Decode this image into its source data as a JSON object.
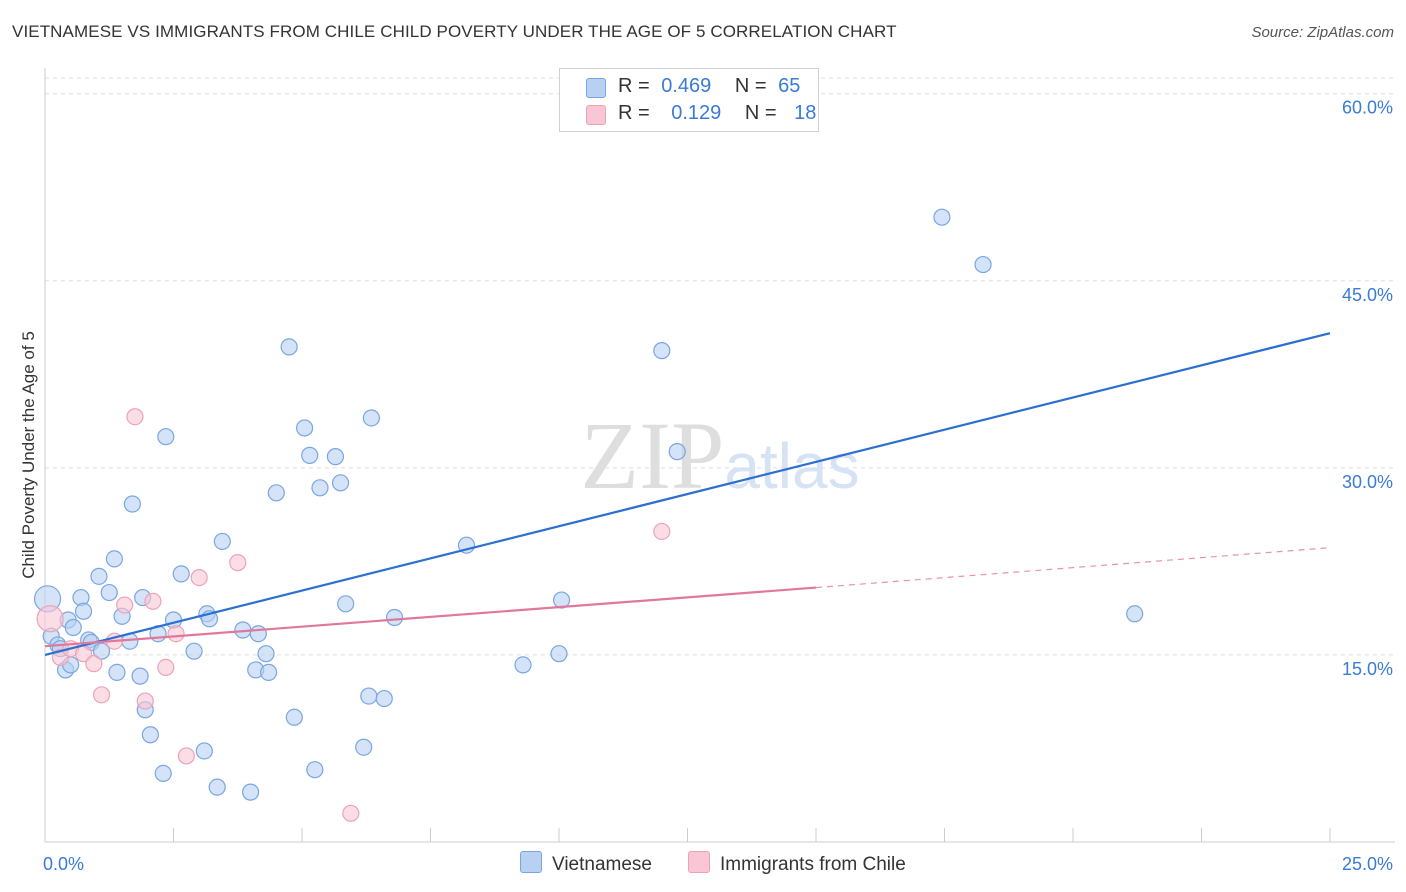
{
  "header": {
    "title": "VIETNAMESE VS IMMIGRANTS FROM CHILE CHILD POVERTY UNDER THE AGE OF 5 CORRELATION CHART",
    "source": "Source: ZipAtlas.com"
  },
  "legend": {
    "rows": [
      {
        "r_label": "R =",
        "r_value": "0.469",
        "n_label": "N =",
        "n_value": "65"
      },
      {
        "r_label": "R =",
        "r_value": "0.129",
        "n_label": "N =",
        "n_value": "18"
      }
    ]
  },
  "bottom_legend": {
    "series1": "Vietnamese",
    "series2": "Immigrants from Chile"
  },
  "colors": {
    "blue_fill": "#b8d0f2",
    "blue_stroke": "#7aa6e0",
    "blue_line": "#2a6fd1",
    "pink_fill": "#f8c6d4",
    "pink_stroke": "#eea2b8",
    "pink_line": "#e2779c",
    "axis_label": "#3a7bd5",
    "grid": "#dddddd"
  },
  "chart_data": {
    "type": "scatter",
    "title": "VIETNAMESE VS IMMIGRANTS FROM CHILE CHILD POVERTY UNDER THE AGE OF 5 CORRELATION CHART",
    "xlabel": "",
    "ylabel": "Child Poverty Under the Age of 5",
    "x_tick_labels": [
      "0.0%",
      "25.0%"
    ],
    "y_tick_labels": [
      "15.0%",
      "30.0%",
      "45.0%",
      "60.0%"
    ],
    "y_ticks": [
      15,
      30,
      45,
      60
    ],
    "xlim": [
      0,
      25
    ],
    "ylim": [
      0,
      61.5
    ],
    "grid": true,
    "legend_position": "top-center",
    "watermark": "ZIPatlas",
    "series": [
      {
        "name": "Vietnamese",
        "R": 0.469,
        "N": 65,
        "trend": {
          "x0": 0,
          "y0": 15.0,
          "x1": 25,
          "y1": 40.8
        },
        "points": [
          [
            0.05,
            19.5
          ],
          [
            0.12,
            16.5
          ],
          [
            0.25,
            15.8
          ],
          [
            0.3,
            15.5
          ],
          [
            0.4,
            13.8
          ],
          [
            0.45,
            17.8
          ],
          [
            0.55,
            17.2
          ],
          [
            0.7,
            19.6
          ],
          [
            0.75,
            18.5
          ],
          [
            0.85,
            16.2
          ],
          [
            0.9,
            16.0
          ],
          [
            1.1,
            15.3
          ],
          [
            1.05,
            21.3
          ],
          [
            1.25,
            20.0
          ],
          [
            1.35,
            22.7
          ],
          [
            1.4,
            13.6
          ],
          [
            1.5,
            18.1
          ],
          [
            1.65,
            16.1
          ],
          [
            1.7,
            27.1
          ],
          [
            1.85,
            13.3
          ],
          [
            1.9,
            19.6
          ],
          [
            1.95,
            10.6
          ],
          [
            2.05,
            8.6
          ],
          [
            2.2,
            16.7
          ],
          [
            2.3,
            5.5
          ],
          [
            2.35,
            32.5
          ],
          [
            2.5,
            17.8
          ],
          [
            2.65,
            21.5
          ],
          [
            2.9,
            15.3
          ],
          [
            3.1,
            7.3
          ],
          [
            3.15,
            18.3
          ],
          [
            3.2,
            17.9
          ],
          [
            3.35,
            4.4
          ],
          [
            3.45,
            24.1
          ],
          [
            3.85,
            17.0
          ],
          [
            4.0,
            4.0
          ],
          [
            4.1,
            13.8
          ],
          [
            4.15,
            16.7
          ],
          [
            4.3,
            15.1
          ],
          [
            4.35,
            13.6
          ],
          [
            4.5,
            28.0
          ],
          [
            4.75,
            39.7
          ],
          [
            4.85,
            10.0
          ],
          [
            5.05,
            33.2
          ],
          [
            5.15,
            31.0
          ],
          [
            5.25,
            5.8
          ],
          [
            5.35,
            28.4
          ],
          [
            5.65,
            30.9
          ],
          [
            5.75,
            28.8
          ],
          [
            5.85,
            19.1
          ],
          [
            6.2,
            7.6
          ],
          [
            6.3,
            11.7
          ],
          [
            6.35,
            34.0
          ],
          [
            6.6,
            11.5
          ],
          [
            6.8,
            18.0
          ],
          [
            8.2,
            23.8
          ],
          [
            9.3,
            14.2
          ],
          [
            10.0,
            15.1
          ],
          [
            10.05,
            19.4
          ],
          [
            12.0,
            39.4
          ],
          [
            12.3,
            31.3
          ],
          [
            17.45,
            50.1
          ],
          [
            18.25,
            46.3
          ],
          [
            21.2,
            18.3
          ],
          [
            0.5,
            14.2
          ]
        ]
      },
      {
        "name": "Immigrants from Chile",
        "R": 0.129,
        "N": 18,
        "trend_solid": {
          "x0": 0,
          "y0": 15.7,
          "x1": 15,
          "y1": 20.4
        },
        "trend_dashed": {
          "x0": 15,
          "y0": 20.4,
          "x1": 25,
          "y1": 23.6
        },
        "points": [
          [
            0.1,
            17.9
          ],
          [
            0.3,
            14.8
          ],
          [
            0.5,
            15.5
          ],
          [
            0.75,
            15.1
          ],
          [
            0.95,
            14.3
          ],
          [
            1.1,
            11.8
          ],
          [
            1.35,
            16.1
          ],
          [
            1.55,
            19.0
          ],
          [
            1.75,
            34.1
          ],
          [
            1.95,
            11.3
          ],
          [
            2.1,
            19.3
          ],
          [
            2.35,
            14.0
          ],
          [
            2.55,
            16.7
          ],
          [
            2.75,
            6.9
          ],
          [
            3.0,
            21.2
          ],
          [
            3.75,
            22.4
          ],
          [
            5.95,
            2.3
          ],
          [
            12.0,
            24.9
          ]
        ]
      }
    ]
  }
}
